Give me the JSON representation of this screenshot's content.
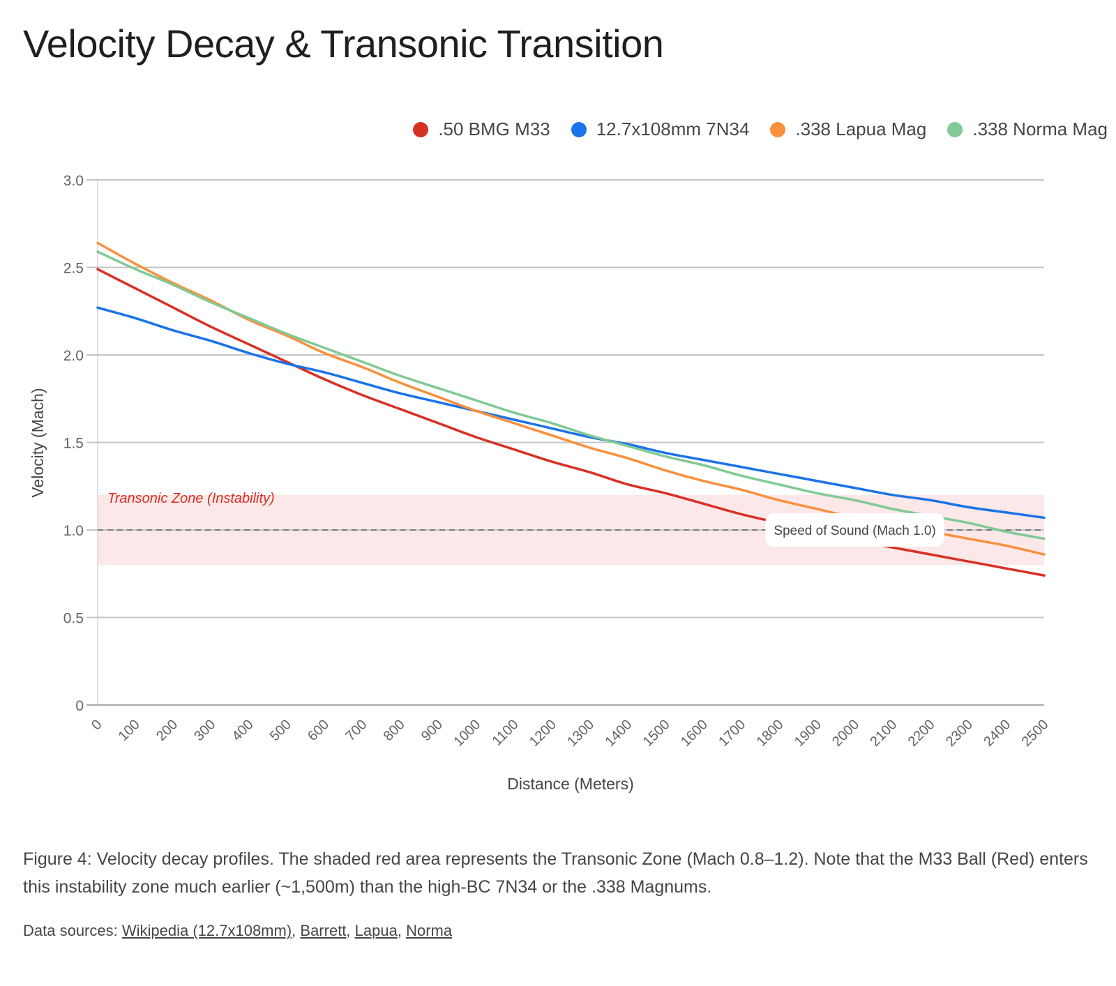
{
  "title": "Velocity Decay & Transonic Transition",
  "legend": [
    {
      "label": ".50 BMG M33",
      "color": "#d93025"
    },
    {
      "label": "12.7x108mm 7N34",
      "color": "#1a73e8"
    },
    {
      "label": ".338 Lapua Mag",
      "color": "#fa903e"
    },
    {
      "label": ".338 Norma Mag",
      "color": "#81c995"
    }
  ],
  "caption": "Figure 4: Velocity decay profiles. The shaded red area represents the Transonic Zone (Mach 0.8–1.2). Note that the M33 Ball (Red) enters this instability zone much earlier (~1,500m) than the high-BC 7N34 or the .338 Magnums.",
  "sources": {
    "prefix": "Data sources: ",
    "links": [
      "Wikipedia (12.7x108mm)",
      "Barrett",
      "Lapua",
      "Norma"
    ],
    "separator": ", "
  },
  "chart_data": {
    "type": "line",
    "title": "Velocity Decay & Transonic Transition",
    "xlabel": "Distance (Meters)",
    "ylabel": "Velocity (Mach)",
    "x": [
      0,
      100,
      200,
      300,
      400,
      500,
      600,
      700,
      800,
      900,
      1000,
      1100,
      1200,
      1300,
      1400,
      1500,
      1600,
      1700,
      1800,
      1900,
      2000,
      2100,
      2200,
      2300,
      2400,
      2500
    ],
    "xlim": [
      0,
      2500
    ],
    "ylim": [
      0,
      3.0
    ],
    "yticks": [
      0,
      0.5,
      1.0,
      1.5,
      2.0,
      2.5,
      3.0
    ],
    "ytick_labels": [
      "0",
      "0.5",
      "1.0",
      "1.5",
      "2.0",
      "2.5",
      "3.0"
    ],
    "xtick_labels": [
      "0",
      "100",
      "200",
      "300",
      "400",
      "500",
      "600",
      "700",
      "800",
      "900",
      "1000",
      "1100",
      "1200",
      "1300",
      "1400",
      "1500",
      "1600",
      "1700",
      "1800",
      "1900",
      "2000",
      "2100",
      "2200",
      "2300",
      "2400",
      "2500"
    ],
    "grid": true,
    "legend_position": "top-right",
    "series": [
      {
        "name": ".50 BMG M33",
        "color": "#d93025",
        "values": [
          2.49,
          2.38,
          2.27,
          2.16,
          2.06,
          1.96,
          1.86,
          1.77,
          1.69,
          1.61,
          1.53,
          1.46,
          1.39,
          1.33,
          1.26,
          1.21,
          1.15,
          1.09,
          1.04,
          0.99,
          0.94,
          0.9,
          0.86,
          0.82,
          0.78,
          0.74
        ]
      },
      {
        "name": "12.7x108mm 7N34",
        "color": "#1a73e8",
        "values": [
          2.27,
          2.21,
          2.14,
          2.08,
          2.01,
          1.95,
          1.9,
          1.84,
          1.78,
          1.73,
          1.68,
          1.63,
          1.58,
          1.53,
          1.49,
          1.44,
          1.4,
          1.36,
          1.32,
          1.28,
          1.24,
          1.2,
          1.17,
          1.13,
          1.1,
          1.07
        ]
      },
      {
        "name": ".338 Lapua Mag",
        "color": "#fa903e",
        "values": [
          2.64,
          2.52,
          2.41,
          2.31,
          2.2,
          2.11,
          2.01,
          1.93,
          1.84,
          1.76,
          1.68,
          1.61,
          1.54,
          1.47,
          1.41,
          1.34,
          1.28,
          1.23,
          1.17,
          1.12,
          1.07,
          1.03,
          0.99,
          0.95,
          0.91,
          0.86
        ]
      },
      {
        "name": ".338 Norma Mag",
        "color": "#81c995",
        "values": [
          2.59,
          2.49,
          2.4,
          2.3,
          2.21,
          2.12,
          2.04,
          1.96,
          1.88,
          1.81,
          1.74,
          1.67,
          1.61,
          1.54,
          1.48,
          1.42,
          1.37,
          1.31,
          1.26,
          1.21,
          1.17,
          1.12,
          1.08,
          1.04,
          0.99,
          0.95
        ]
      }
    ],
    "annotations": {
      "band": {
        "label": "Transonic Zone (Instability)",
        "y_from": 0.8,
        "y_to": 1.2,
        "color": "#fce8e8",
        "label_color": "#d93025"
      },
      "reference_line": {
        "label": "Speed of Sound (Mach 1.0)",
        "y": 1.0,
        "style": "dashed",
        "label_x": 2000
      }
    }
  }
}
